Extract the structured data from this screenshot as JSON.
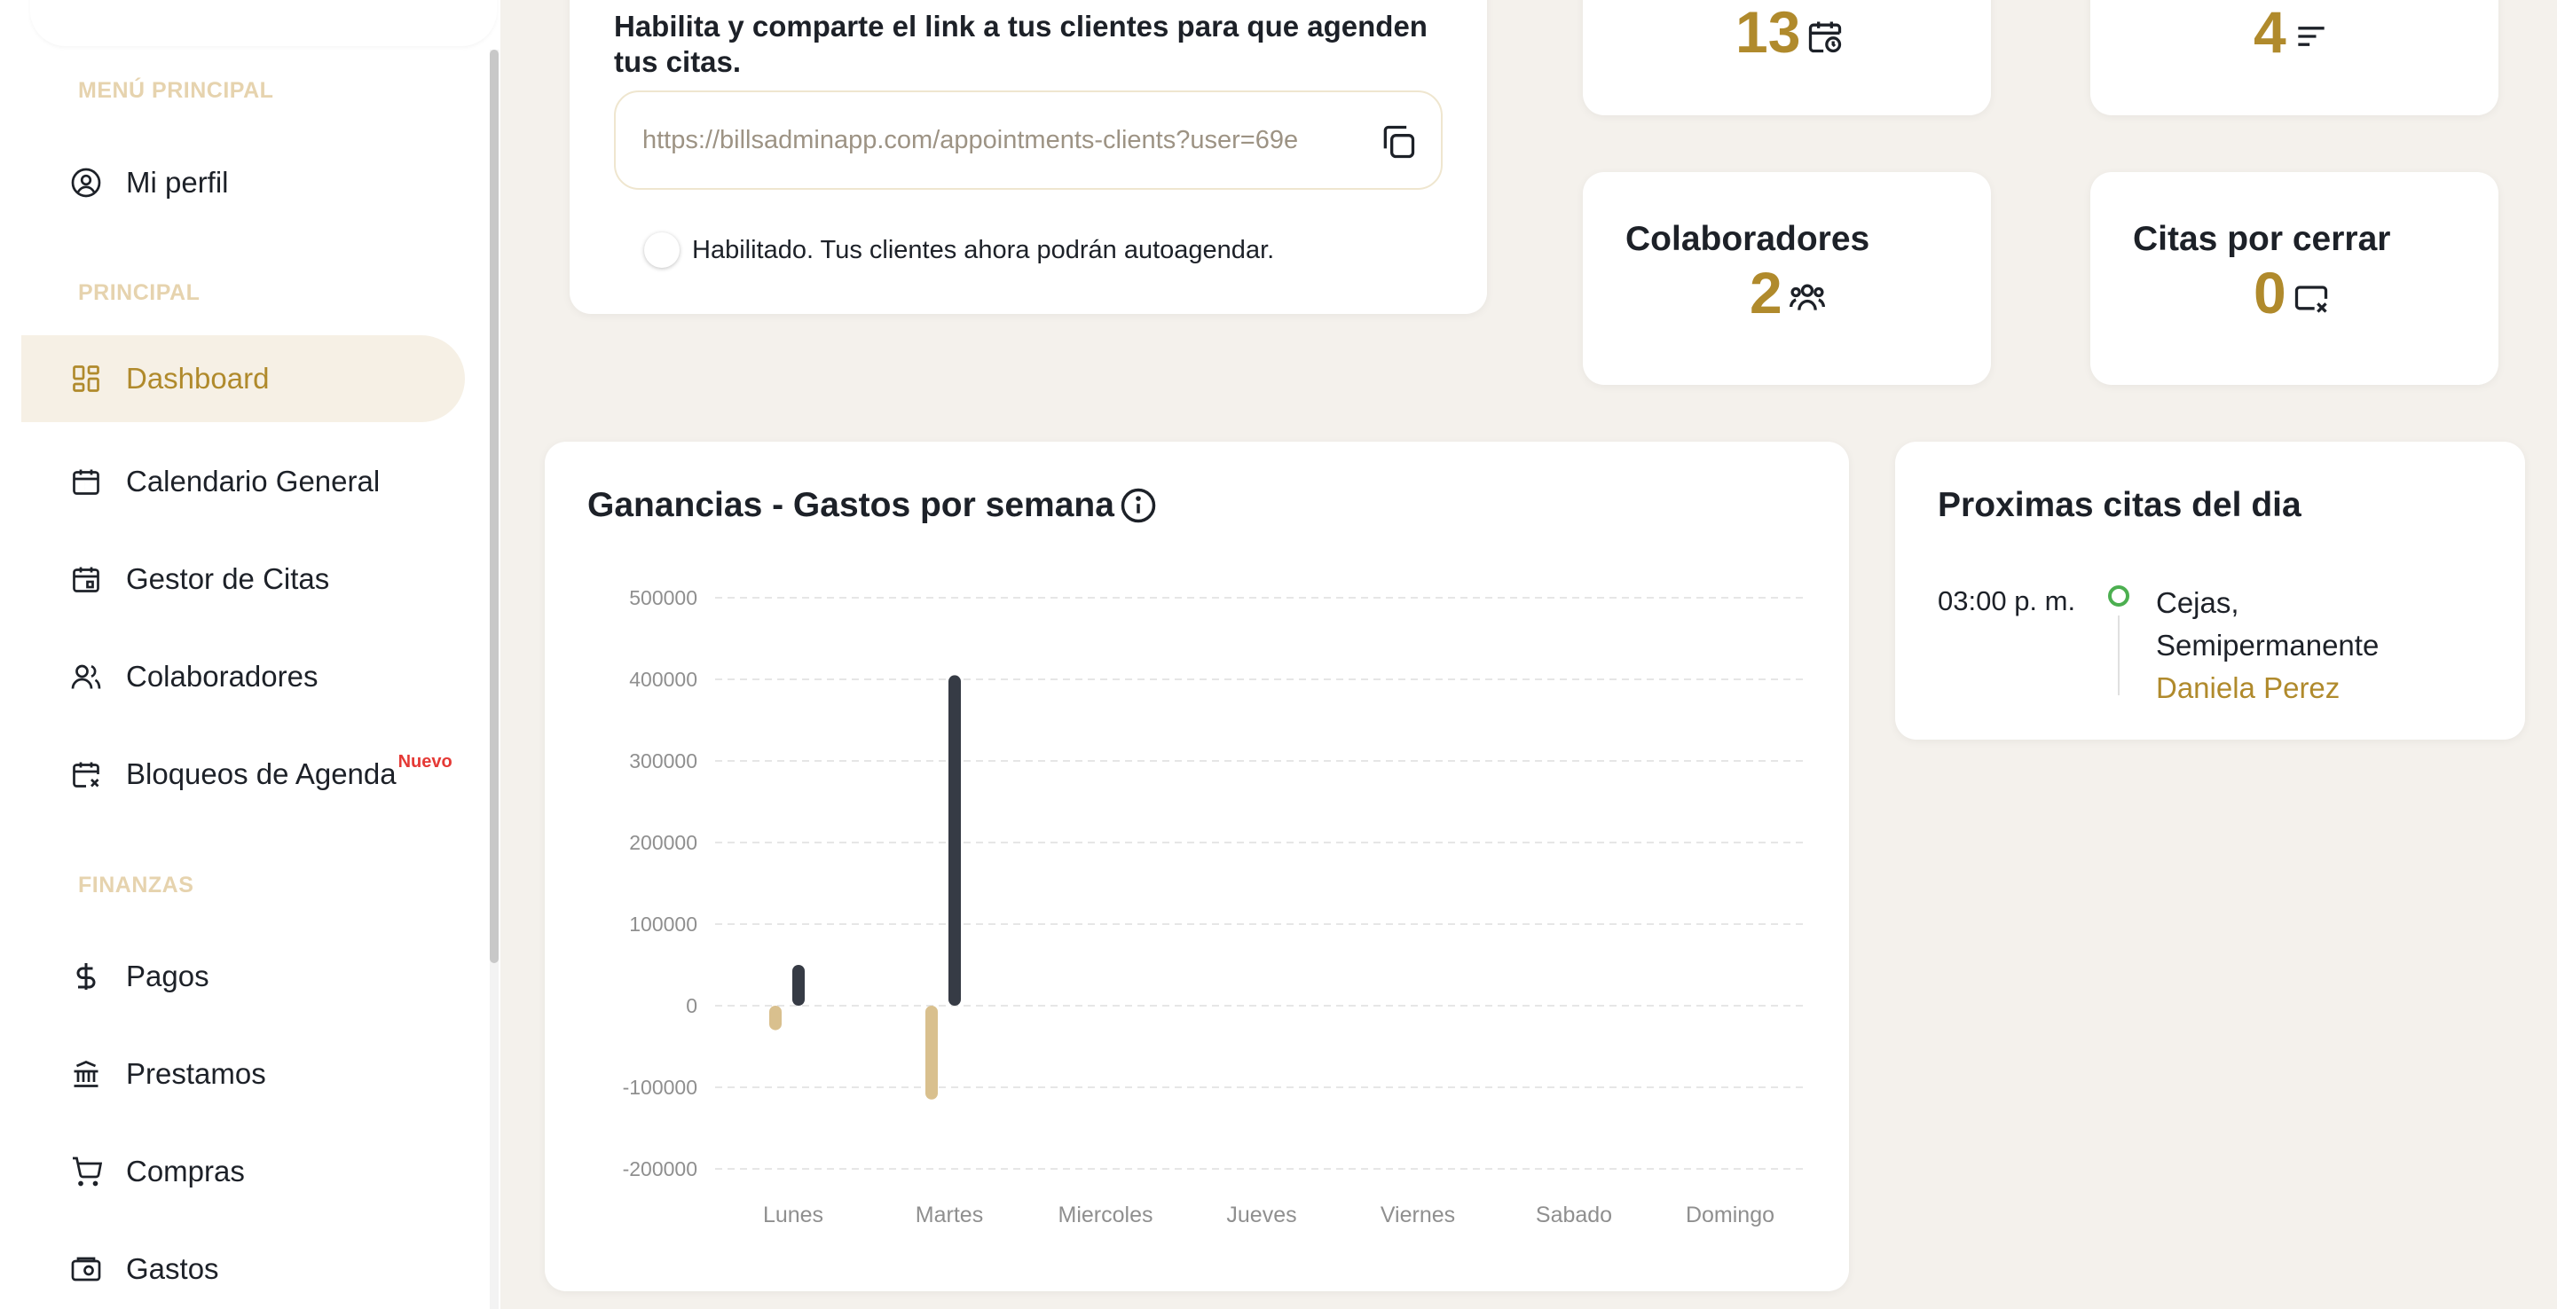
{
  "sidebar": {
    "sections": {
      "main": "MENÚ PRINCIPAL",
      "principal": "PRINCIPAL",
      "finanzas": "FINANZAS"
    },
    "items": {
      "perfil": "Mi perfil",
      "dashboard": "Dashboard",
      "calendario": "Calendario General",
      "citas": "Gestor de Citas",
      "colaboradores": "Colaboradores",
      "bloqueos": "Bloqueos de Agenda",
      "bloqueos_badge": "Nuevo",
      "pagos": "Pagos",
      "prestamos": "Prestamos",
      "compras": "Compras",
      "gastos": "Gastos"
    },
    "active_item": "Dashboard"
  },
  "link_card": {
    "description": "Habilita y comparte el link a tus clientes para que agenden tus citas.",
    "url": "https://billsadminapp.com/appointments-clients?user=69e",
    "toggle_label": "Habilitado. Tus clientes ahora podrán autoagendar."
  },
  "stats": {
    "top_left_value": "13",
    "top_right_value": "4",
    "colaboradores_title": "Colaboradores",
    "colaboradores_value": "2",
    "citas_cerrar_title": "Citas por cerrar",
    "citas_cerrar_value": "0"
  },
  "chart_card": {
    "title": "Ganancias - Gastos por semana"
  },
  "chart_data": {
    "type": "bar",
    "title": "Ganancias - Gastos por semana",
    "categories": [
      "Lunes",
      "Martes",
      "Miercoles",
      "Jueves",
      "Viernes",
      "Sabado",
      "Domingo"
    ],
    "series": [
      {
        "color": "#d9c08e",
        "values": [
          -30000,
          -115000,
          0,
          0,
          0,
          0,
          0
        ]
      },
      {
        "color": "#363b45",
        "values": [
          50000,
          405000,
          0,
          0,
          0,
          0,
          0
        ]
      }
    ],
    "ylim": [
      -200000,
      500000
    ],
    "yticks": [
      500000,
      400000,
      300000,
      200000,
      100000,
      0,
      -100000,
      -200000
    ],
    "ytick_labels": [
      "500000",
      "400000",
      "300000",
      "200000",
      "100000",
      "0",
      "-100000",
      "-200000"
    ],
    "grid": true
  },
  "upcoming": {
    "title": "Proximas citas del dia",
    "appointments": [
      {
        "time": "03:00 p. m.",
        "service": "Cejas, Semipermanente",
        "client": "Daniela Perez"
      }
    ]
  },
  "colors": {
    "accent": "#b08a2c",
    "active_bg": "#f6f0e5",
    "section_label": "#e6d3ae",
    "background": "#f4f1ec"
  }
}
